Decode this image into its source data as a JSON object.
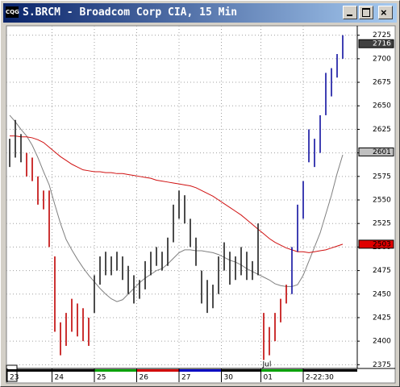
{
  "window": {
    "title": "S.BRCM - Broadcom Corp CIA, 15 Min"
  },
  "chart_data": {
    "type": "range-bar",
    "high": [
      2615,
      2635,
      2620,
      2600,
      2595,
      2575,
      2560,
      2560,
      2490,
      2420,
      2430,
      2445,
      2440,
      2435,
      2425,
      2470,
      2490,
      2495,
      2490,
      2495,
      2490,
      2480,
      2470,
      2465,
      2485,
      2495,
      2500,
      2495,
      2510,
      2545,
      2560,
      2555,
      2530,
      2510,
      2475,
      2465,
      2460,
      2490,
      2505,
      2495,
      2490,
      2500,
      2495,
      2485,
      2525,
      2430,
      2415,
      2430,
      2445,
      2460,
      2500,
      2545,
      2570,
      2625,
      2615,
      2640,
      2685,
      2690,
      2705,
      2725
    ],
    "low": [
      2585,
      2595,
      2590,
      2575,
      2570,
      2545,
      2540,
      2500,
      2410,
      2385,
      2395,
      2410,
      2405,
      2400,
      2395,
      2430,
      2460,
      2470,
      2470,
      2475,
      2465,
      2450,
      2440,
      2445,
      2455,
      2470,
      2480,
      2475,
      2480,
      2505,
      2530,
      2525,
      2500,
      2480,
      2440,
      2430,
      2435,
      2450,
      2475,
      2460,
      2465,
      2470,
      2465,
      2465,
      2470,
      2380,
      2385,
      2400,
      2420,
      2440,
      2450,
      2495,
      2530,
      2590,
      2585,
      2600,
      2640,
      2660,
      2680,
      2700
    ],
    "bar_colors": [
      "#202020",
      "#202020",
      "#202020",
      "#c00000",
      "#c00000",
      "#c00000",
      "#c00000",
      "#c00000",
      "#c00000",
      "#c00000",
      "#c00000",
      "#c00000",
      "#c00000",
      "#c00000",
      "#c00000",
      "#202020",
      "#202020",
      "#202020",
      "#202020",
      "#202020",
      "#202020",
      "#202020",
      "#202020",
      "#202020",
      "#202020",
      "#202020",
      "#202020",
      "#202020",
      "#202020",
      "#202020",
      "#202020",
      "#202020",
      "#202020",
      "#202020",
      "#202020",
      "#202020",
      "#202020",
      "#202020",
      "#202020",
      "#202020",
      "#202020",
      "#202020",
      "#202020",
      "#202020",
      "#202020",
      "#c00000",
      "#c00000",
      "#c00000",
      "#c00000",
      "#c00000",
      "#1010a0",
      "#1010a0",
      "#1010a0",
      "#1010a0",
      "#1010a0",
      "#1010a0",
      "#1010a0",
      "#1010a0",
      "#1010a0",
      "#1010a0"
    ],
    "lines": [
      {
        "color": "#808080",
        "values": [
          2640,
          2633,
          2625,
          2618,
          2608,
          2595,
          2580,
          2566,
          2545,
          2525,
          2508,
          2497,
          2487,
          2478,
          2470,
          2463,
          2456,
          2450,
          2445,
          2442,
          2444,
          2450,
          2456,
          2462,
          2467,
          2471,
          2475,
          2477,
          2482,
          2488,
          2494,
          2497,
          2497,
          2496,
          2496,
          2495,
          2494,
          2492,
          2489,
          2486,
          2484,
          2481,
          2477,
          2474,
          2471,
          2468,
          2465,
          2461,
          2459,
          2458,
          2458,
          2460,
          2470,
          2485,
          2500,
          2515,
          2535,
          2555,
          2578,
          2598
        ]
      },
      {
        "color": "#d01010",
        "values": [
          2618,
          2618,
          2617,
          2617,
          2616,
          2614,
          2611,
          2606,
          2601,
          2596,
          2592,
          2588,
          2585,
          2582,
          2581,
          2580,
          2580,
          2579,
          2579,
          2578,
          2578,
          2577,
          2576,
          2575,
          2574,
          2573,
          2571,
          2570,
          2569,
          2568,
          2567,
          2566,
          2565,
          2563,
          2560,
          2557,
          2554,
          2550,
          2546,
          2542,
          2538,
          2534,
          2529,
          2524,
          2519,
          2514,
          2509,
          2505,
          2502,
          2499,
          2497,
          2495,
          2495,
          2494,
          2495,
          2496,
          2497,
          2499,
          2501,
          2503
        ]
      }
    ],
    "ylim": [
      2371,
      2735
    ],
    "yticks": [
      2375,
      2400,
      2425,
      2450,
      2475,
      2500,
      2525,
      2550,
      2575,
      2600,
      2625,
      2650,
      2675,
      2700,
      2725
    ],
    "price_tags": [
      {
        "value": 2716,
        "color": "#404040",
        "text_color": "#ffffff"
      },
      {
        "value": 2601,
        "color": "#c0c0c0",
        "text_color": "#000000"
      },
      {
        "value": 2503,
        "color": "#e00000",
        "text_color": "#000000"
      }
    ],
    "xticks": [
      {
        "value": -0.5,
        "label": "23"
      },
      {
        "value": 7.5,
        "label": "24"
      },
      {
        "value": 15,
        "label": "25"
      },
      {
        "value": 22.5,
        "label": "26"
      },
      {
        "value": 30,
        "label": "27"
      },
      {
        "value": 37.5,
        "label": "30"
      },
      {
        "value": 44.5,
        "label": "01"
      },
      {
        "value": 52,
        "label": "2-22:30"
      }
    ],
    "strip_colors": [
      "#000000",
      "#000000",
      "#00a000",
      "#d00000",
      "#0000c0",
      "#000000",
      "#00a000",
      "#000000"
    ],
    "annotation": "Jul",
    "grid": true
  }
}
